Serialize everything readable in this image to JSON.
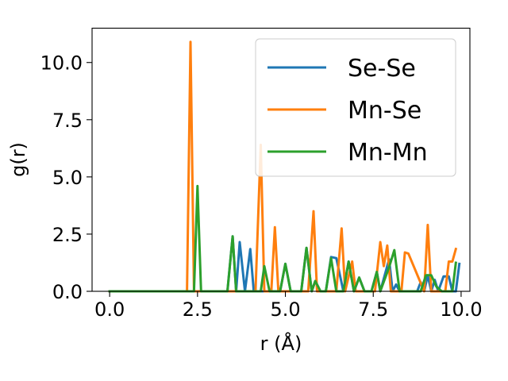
{
  "chart_data": {
    "type": "line",
    "title": "",
    "xlabel": "r (Å)",
    "ylabel": "g(r)",
    "xlim": [
      -0.5,
      10.25
    ],
    "ylim": [
      0,
      11.5
    ],
    "xticks": [
      0.0,
      2.5,
      5.0,
      7.5,
      10.0
    ],
    "xtick_labels": [
      "0.0",
      "2.5",
      "5.0",
      "7.5",
      "10.0"
    ],
    "yticks": [
      0.0,
      2.5,
      5.0,
      7.5,
      10.0
    ],
    "ytick_labels": [
      "0.0",
      "2.5",
      "5.0",
      "7.5",
      "10.0"
    ],
    "grid": false,
    "legend_position": "top-right",
    "series": [
      {
        "name": "Se-Se",
        "color": "#1f77b4",
        "x": [
          0.0,
          3.35,
          3.5,
          3.6,
          3.7,
          3.85,
          4.0,
          4.1,
          4.25,
          4.85,
          5.0,
          5.15,
          5.45,
          5.6,
          5.75,
          5.85,
          6.0,
          6.15,
          6.3,
          6.45,
          6.65,
          6.8,
          6.95,
          7.1,
          7.25,
          7.45,
          7.6,
          7.7,
          7.95,
          8.05,
          8.15,
          8.25,
          8.35,
          8.75,
          8.85,
          8.95,
          9.05,
          9.15,
          9.25,
          9.35,
          9.5,
          9.65,
          9.75,
          9.85,
          9.95
        ],
        "y": [
          0.0,
          0.0,
          2.4,
          0.0,
          2.15,
          0.0,
          1.85,
          0.0,
          0.0,
          0.0,
          1.2,
          0.0,
          0.0,
          1.9,
          0.0,
          0.45,
          0.0,
          0.0,
          1.5,
          1.45,
          0.0,
          1.3,
          0.0,
          0.6,
          0.0,
          0.0,
          0.85,
          0.0,
          1.4,
          0.0,
          0.3,
          0.0,
          0.0,
          0.0,
          0.4,
          0.0,
          0.7,
          0.0,
          0.5,
          0.0,
          0.65,
          0.65,
          0.0,
          0.0,
          1.2
        ]
      },
      {
        "name": "Mn-Se",
        "color": "#ff7f0e",
        "x": [
          0.0,
          2.2,
          2.3,
          2.4,
          4.15,
          4.3,
          4.4,
          4.6,
          4.7,
          4.8,
          5.65,
          5.8,
          5.9,
          6.45,
          6.6,
          6.7,
          6.9,
          7.0,
          7.55,
          7.7,
          7.8,
          7.9,
          8.0,
          8.3,
          8.4,
          8.5,
          8.95,
          9.05,
          9.15,
          9.55,
          9.65,
          9.75,
          9.85
        ],
        "y": [
          0.0,
          0.0,
          10.9,
          0.0,
          0.0,
          6.4,
          0.0,
          0.0,
          2.8,
          0.0,
          0.0,
          3.5,
          0.0,
          0.0,
          2.75,
          0.0,
          1.3,
          0.0,
          0.0,
          2.15,
          1.1,
          2.0,
          0.0,
          0.0,
          1.7,
          1.65,
          0.0,
          2.9,
          0.0,
          0.0,
          1.3,
          1.3,
          1.85
        ]
      },
      {
        "name": "Mn-Mn",
        "color": "#2ca02c",
        "x": [
          0.0,
          2.4,
          2.5,
          2.6,
          3.35,
          3.5,
          3.6,
          3.75,
          4.3,
          4.4,
          4.55,
          4.85,
          5.0,
          5.15,
          5.45,
          5.6,
          5.75,
          5.85,
          6.0,
          6.15,
          6.3,
          6.45,
          6.65,
          6.8,
          6.95,
          7.1,
          7.25,
          7.45,
          7.6,
          7.7,
          7.95,
          8.1,
          8.25,
          8.75,
          8.85,
          9.0,
          9.15,
          9.3,
          9.45,
          9.6,
          9.75,
          9.85
        ],
        "y": [
          0.0,
          0.0,
          4.6,
          0.0,
          0.0,
          2.4,
          0.0,
          0.0,
          0.0,
          1.1,
          0.0,
          0.0,
          1.2,
          0.0,
          0.0,
          1.9,
          0.0,
          0.45,
          0.0,
          0.0,
          1.45,
          0.0,
          0.0,
          1.3,
          0.0,
          0.6,
          0.0,
          0.0,
          0.85,
          0.0,
          1.05,
          1.8,
          0.0,
          0.0,
          0.0,
          0.7,
          0.7,
          0.2,
          0.0,
          0.0,
          0.0,
          1.25
        ]
      }
    ]
  }
}
